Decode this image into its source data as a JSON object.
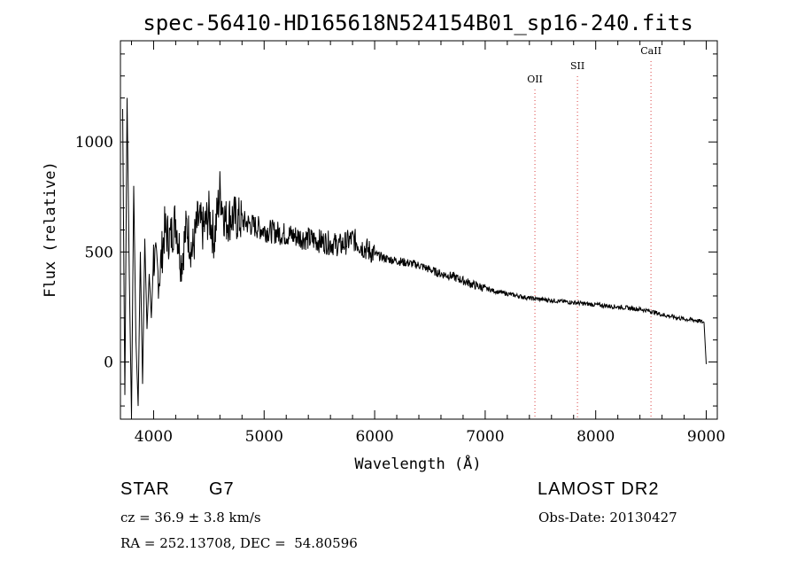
{
  "chart_data": {
    "type": "line",
    "title": "spec-56410-HD165618N524154B01_sp16-240.fits",
    "xlabel": "Wavelength (Å)",
    "ylabel": "Flux (relative)",
    "xlim": [
      3700,
      9100
    ],
    "ylim": [
      -260,
      1460
    ],
    "xticks": [
      4000,
      5000,
      6000,
      7000,
      8000,
      9000
    ],
    "yticks": [
      0,
      500,
      1000
    ],
    "line_color": "#000000",
    "marker_color": "#e06060",
    "lines": [
      {
        "name": "OII",
        "x": 7450
      },
      {
        "name": "SII",
        "x": 7835
      },
      {
        "name": "CaII",
        "x": 8500
      }
    ],
    "series": [
      {
        "x": [
          3720,
          3740,
          3760,
          3780,
          3800,
          3820,
          3840,
          3860,
          3880,
          3900,
          3920,
          3940,
          3960,
          3980,
          4000,
          4050,
          4100,
          4150,
          4200,
          4250,
          4300,
          4350,
          4400,
          4450,
          4500,
          4550,
          4600,
          4650,
          4700,
          4800,
          4900,
          5000,
          5100,
          5200,
          5300,
          5400,
          5500,
          5600,
          5700,
          5800,
          5900,
          6000,
          6100,
          6200,
          6300,
          6400,
          6500,
          6600,
          6700,
          6800,
          6900,
          7000,
          7100,
          7200,
          7300,
          7400,
          7500,
          7600,
          7700,
          7800,
          7900,
          8000,
          8100,
          8200,
          8300,
          8400,
          8500,
          8600,
          8700,
          8800,
          8900,
          8980,
          9000
        ],
        "y": [
          1150,
          -150,
          1200,
          400,
          -250,
          800,
          100,
          -200,
          500,
          -100,
          560,
          150,
          400,
          200,
          480,
          380,
          600,
          560,
          650,
          450,
          620,
          500,
          640,
          600,
          670,
          560,
          780,
          640,
          660,
          640,
          620,
          600,
          590,
          580,
          570,
          560,
          550,
          540,
          530,
          560,
          520,
          490,
          470,
          460,
          450,
          440,
          420,
          400,
          390,
          370,
          350,
          335,
          320,
          310,
          300,
          290,
          285,
          280,
          275,
          270,
          265,
          260,
          255,
          250,
          245,
          240,
          230,
          215,
          205,
          195,
          190,
          180,
          -10
        ]
      }
    ]
  },
  "info": {
    "object_class": "STAR",
    "subclass": "G7",
    "survey": "LAMOST DR2",
    "cz": "cz = 36.9 ± 3.8 km/s",
    "obs_date": "Obs-Date: 20130427",
    "coords": "RA = 252.13708, DEC =  54.80596"
  }
}
